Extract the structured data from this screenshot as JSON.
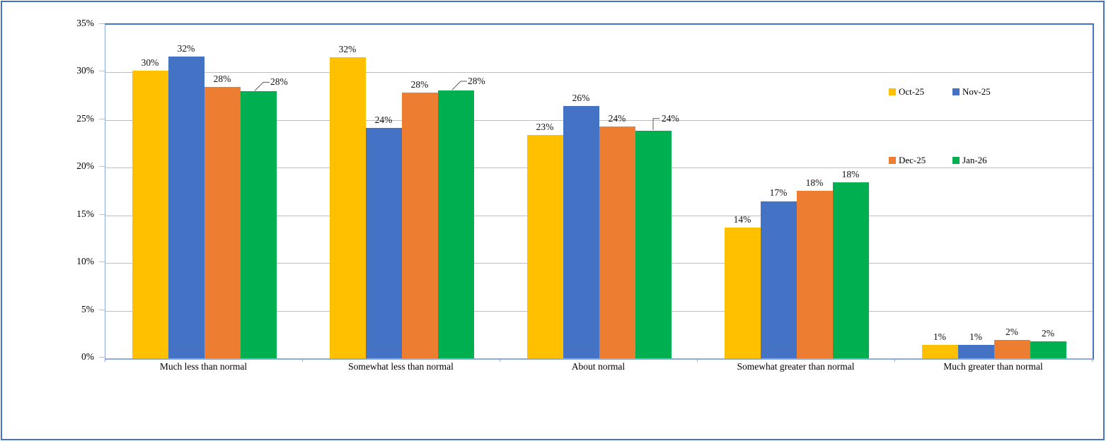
{
  "window": {
    "background": "#FFFFFF",
    "outer_border_color": "#4472C4"
  },
  "colors": {
    "plot_border": "#4472C4",
    "axis_line": "#8EA9DB",
    "gridline": "#BFBFBF",
    "leader_line": "#595959",
    "label_text": "#111111"
  },
  "chart_data": {
    "type": "bar",
    "title": "",
    "xlabel": "",
    "ylabel": "",
    "grid": true,
    "legend_position": "inside-right-two-columns",
    "ylim": [
      0,
      35
    ],
    "categories": [
      "Much less than normal",
      "Somewhat less than normal",
      "About normal",
      "Somewhat greater than normal",
      "Much greater than normal"
    ],
    "yticks": [
      {
        "value": 0,
        "label": "0%"
      },
      {
        "value": 5,
        "label": "5%"
      },
      {
        "value": 10,
        "label": "10%"
      },
      {
        "value": 15,
        "label": "15%"
      },
      {
        "value": 20,
        "label": "20%"
      },
      {
        "value": 25,
        "label": "25%"
      },
      {
        "value": 30,
        "label": "30%"
      },
      {
        "value": 35,
        "label": "35%"
      }
    ],
    "series": [
      {
        "name": "Oct-25",
        "color": "#FFC000",
        "values": [
          30,
          32,
          23,
          14,
          1
        ],
        "labels": [
          "30%",
          "32%",
          "23%",
          "14%",
          "1%"
        ],
        "heights_pct": [
          30.2,
          31.6,
          23.4,
          13.7,
          1.4
        ]
      },
      {
        "name": "Nov-25",
        "color": "#4472C4",
        "values": [
          32,
          24,
          26,
          17,
          1
        ],
        "labels": [
          "32%",
          "24%",
          "26%",
          "17%",
          "1%"
        ],
        "heights_pct": [
          31.7,
          24.2,
          26.5,
          16.5,
          1.4
        ]
      },
      {
        "name": "Dec-25",
        "color": "#ED7D31",
        "values": [
          28,
          28,
          24,
          18,
          2
        ],
        "labels": [
          "28%",
          "28%",
          "24%",
          "18%",
          "2%"
        ],
        "heights_pct": [
          28.5,
          27.9,
          24.3,
          17.6,
          1.9
        ]
      },
      {
        "name": "Jan-26",
        "color": "#00B050",
        "values": [
          28,
          28,
          24,
          18,
          2
        ],
        "labels": [
          "28%",
          "28%",
          "24%",
          "18%",
          "2%"
        ],
        "heights_pct": [
          28.0,
          28.1,
          23.9,
          18.5,
          1.8
        ]
      }
    ],
    "callouts": [
      {
        "series": 3,
        "category": 0,
        "style": "curve"
      },
      {
        "series": 3,
        "category": 1,
        "style": "curve"
      },
      {
        "series": 3,
        "category": 2,
        "style": "elbow"
      }
    ]
  }
}
